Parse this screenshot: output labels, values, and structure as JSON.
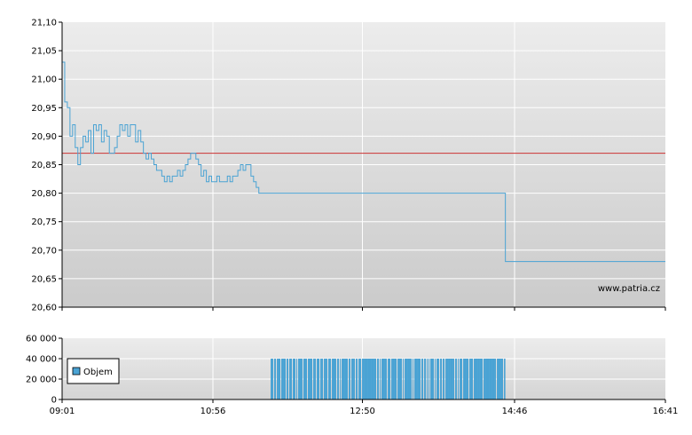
{
  "chart_data": [
    {
      "type": "line",
      "title": "",
      "xlabel": "",
      "ylabel": "",
      "x_ticks": [
        "09:01",
        "10:56",
        "12:50",
        "14:46",
        "16:41"
      ],
      "x_range": [
        "09:01",
        "16:41"
      ],
      "y_ticks": [
        "21,10",
        "21,05",
        "21,00",
        "20,95",
        "20,90",
        "20,85",
        "20,80",
        "20,75",
        "20,70",
        "20,65",
        "20,60"
      ],
      "ylim": [
        20.6,
        21.1
      ],
      "grid": true,
      "reference_line": {
        "value": 20.87,
        "color": "#cc3333"
      },
      "watermark": "www.patria.cz",
      "line_color": "#4aa3d4",
      "series": [
        {
          "x": [
            "09:01",
            "09:03",
            "09:05",
            "09:07",
            "09:09",
            "09:11",
            "09:13",
            "09:15",
            "09:17",
            "09:19",
            "09:21",
            "09:23",
            "09:25",
            "09:27",
            "09:29",
            "09:31",
            "09:33",
            "09:35",
            "09:37",
            "09:39",
            "09:41",
            "09:43",
            "09:45",
            "09:47",
            "09:49",
            "09:51",
            "09:53",
            "09:55",
            "09:57",
            "09:59",
            "10:01",
            "10:03",
            "10:05",
            "10:07",
            "10:09",
            "10:11",
            "10:13",
            "10:15",
            "10:17",
            "10:19",
            "10:21",
            "10:23",
            "10:25",
            "10:27",
            "10:29",
            "10:31",
            "10:33",
            "10:35",
            "10:37",
            "10:39",
            "10:41",
            "10:43",
            "10:45",
            "10:47",
            "10:49",
            "10:51",
            "10:53",
            "10:55",
            "10:57",
            "10:59",
            "11:01",
            "11:03",
            "11:05",
            "11:07",
            "11:09",
            "11:11",
            "11:13",
            "11:15",
            "11:17",
            "11:19",
            "11:21",
            "11:23",
            "11:25",
            "11:27",
            "11:29",
            "11:31",
            "11:33",
            "11:35",
            "11:37",
            "11:39",
            "11:41",
            "11:43",
            "11:45",
            "11:47",
            "11:49",
            "11:51",
            "11:53",
            "11:55",
            "11:57",
            "11:59",
            "12:01",
            "12:03",
            "12:05",
            "12:07",
            "12:09",
            "12:11",
            "12:13",
            "12:15",
            "12:17",
            "12:19",
            "12:21",
            "12:23",
            "12:25",
            "12:27",
            "12:29",
            "12:31",
            "14:39",
            "14:41",
            "16:41"
          ],
          "values": [
            21.03,
            20.96,
            20.95,
            20.9,
            20.92,
            20.88,
            20.85,
            20.88,
            20.9,
            20.89,
            20.91,
            20.87,
            20.92,
            20.91,
            20.92,
            20.89,
            20.91,
            20.9,
            20.87,
            20.87,
            20.88,
            20.9,
            20.92,
            20.91,
            20.92,
            20.9,
            20.92,
            20.92,
            20.89,
            20.91,
            20.89,
            20.87,
            20.86,
            20.87,
            20.86,
            20.85,
            20.84,
            20.84,
            20.83,
            20.82,
            20.83,
            20.82,
            20.83,
            20.83,
            20.84,
            20.83,
            20.84,
            20.85,
            20.86,
            20.87,
            20.87,
            20.86,
            20.85,
            20.83,
            20.84,
            20.82,
            20.83,
            20.82,
            20.82,
            20.83,
            20.82,
            20.82,
            20.82,
            20.83,
            20.82,
            20.83,
            20.83,
            20.84,
            20.85,
            20.84,
            20.85,
            20.85,
            20.83,
            20.82,
            20.81,
            20.8,
            20.8,
            20.8,
            20.8,
            20.8,
            20.8,
            20.8,
            20.8,
            20.8,
            20.8,
            20.8,
            20.8,
            20.8,
            20.8,
            20.8,
            20.8,
            20.8,
            20.8,
            20.8,
            20.8,
            20.8,
            20.8,
            20.8,
            20.8,
            20.8,
            20.8,
            20.8,
            20.8,
            20.8,
            20.8,
            20.8,
            20.68,
            20.68,
            20.68
          ]
        }
      ]
    },
    {
      "type": "bar",
      "title": "",
      "xlabel": "",
      "ylabel": "",
      "x_ticks": [
        "09:01",
        "10:56",
        "12:50",
        "14:46",
        "16:41"
      ],
      "y_ticks": [
        "60 000",
        "40 000",
        "20 000",
        "0"
      ],
      "ylim": [
        0,
        60000
      ],
      "grid": true,
      "bar_color": "#4aa3d4",
      "legend": {
        "position": "left",
        "label": "Objem",
        "color": "#4aa3d4"
      },
      "series": [
        {
          "name": "Objem",
          "interval": [
            "11:40",
            "14:39"
          ],
          "value": 40000
        }
      ]
    }
  ]
}
